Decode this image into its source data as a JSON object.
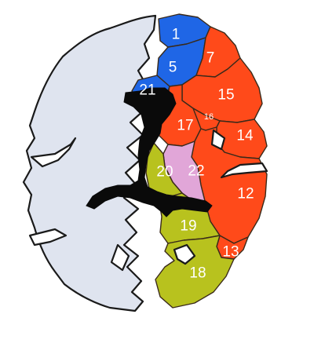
{
  "colors": {
    "left_hemisphere": "#dfe4ef",
    "ventricles": "#0a0a0a",
    "blue_regions": "#1f66e6",
    "orange_regions": "#ff4a1a",
    "olive_regions": "#b8c21e",
    "pink_region": "#e1a6d8",
    "outline": "#1a1a1a"
  },
  "regions": [
    {
      "id": "region-1",
      "label": "1",
      "group": "blue"
    },
    {
      "id": "region-5",
      "label": "5",
      "group": "blue"
    },
    {
      "id": "region-21",
      "label": "21",
      "group": "blue"
    },
    {
      "id": "region-7",
      "label": "7",
      "group": "orange"
    },
    {
      "id": "region-15",
      "label": "15",
      "group": "orange"
    },
    {
      "id": "region-16",
      "label": "16",
      "group": "orange"
    },
    {
      "id": "region-17",
      "label": "17",
      "group": "orange"
    },
    {
      "id": "region-14",
      "label": "14",
      "group": "orange"
    },
    {
      "id": "region-12",
      "label": "12",
      "group": "orange"
    },
    {
      "id": "region-13",
      "label": "13",
      "group": "orange"
    },
    {
      "id": "region-22",
      "label": "22",
      "group": "pink"
    },
    {
      "id": "region-20",
      "label": "20",
      "group": "olive"
    },
    {
      "id": "region-19",
      "label": "19",
      "group": "olive"
    },
    {
      "id": "region-18",
      "label": "18",
      "group": "olive"
    }
  ]
}
